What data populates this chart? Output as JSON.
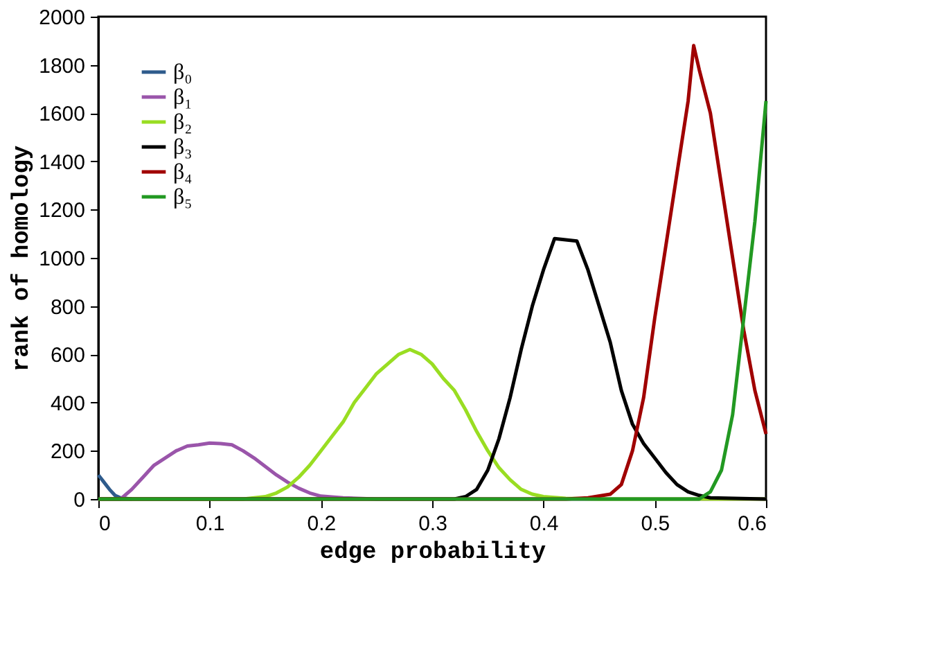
{
  "chart_data": {
    "type": "line",
    "xlabel": "edge probability",
    "ylabel": "rank of homology",
    "xlim": [
      0,
      0.6
    ],
    "ylim": [
      0,
      2000
    ],
    "xticks": [
      0,
      0.1,
      0.2,
      0.3,
      0.4,
      0.5,
      0.6
    ],
    "yticks": [
      0,
      200,
      400,
      600,
      800,
      1000,
      1200,
      1400,
      1600,
      1800,
      2000
    ],
    "grid": false,
    "legend": "top left",
    "line_style": "solid",
    "marker": "none",
    "series": [
      {
        "name": "β₀",
        "color": "#2e5b8c",
        "x": [
          0,
          0.005,
          0.01,
          0.015,
          0.02,
          0.03
        ],
        "values": [
          100,
          70,
          40,
          15,
          5,
          0
        ]
      },
      {
        "name": "β₁",
        "color": "#9a55aa",
        "x": [
          0,
          0.02,
          0.03,
          0.04,
          0.05,
          0.06,
          0.07,
          0.08,
          0.09,
          0.1,
          0.11,
          0.12,
          0.13,
          0.14,
          0.15,
          0.16,
          0.17,
          0.18,
          0.19,
          0.2,
          0.22,
          0.25,
          0.3,
          0.6
        ],
        "values": [
          0,
          0,
          40,
          90,
          140,
          170,
          200,
          220,
          225,
          232,
          230,
          225,
          200,
          170,
          135,
          100,
          70,
          45,
          25,
          12,
          5,
          0,
          0,
          0
        ]
      },
      {
        "name": "β₂",
        "color": "#99dd22",
        "x": [
          0,
          0.13,
          0.15,
          0.16,
          0.17,
          0.18,
          0.19,
          0.2,
          0.21,
          0.22,
          0.23,
          0.24,
          0.25,
          0.26,
          0.27,
          0.28,
          0.29,
          0.3,
          0.31,
          0.32,
          0.33,
          0.34,
          0.35,
          0.36,
          0.37,
          0.38,
          0.39,
          0.4,
          0.42,
          0.45,
          0.6
        ],
        "values": [
          0,
          0,
          10,
          25,
          50,
          90,
          140,
          200,
          260,
          320,
          400,
          460,
          520,
          560,
          600,
          620,
          600,
          560,
          500,
          450,
          370,
          280,
          200,
          130,
          80,
          40,
          20,
          10,
          3,
          0,
          0
        ]
      },
      {
        "name": "β₃",
        "color": "#000000",
        "x": [
          0,
          0.32,
          0.33,
          0.34,
          0.35,
          0.36,
          0.37,
          0.38,
          0.39,
          0.4,
          0.41,
          0.42,
          0.43,
          0.44,
          0.45,
          0.46,
          0.47,
          0.48,
          0.49,
          0.5,
          0.51,
          0.52,
          0.53,
          0.54,
          0.55,
          0.6
        ],
        "values": [
          0,
          0,
          10,
          40,
          120,
          250,
          420,
          620,
          800,
          950,
          1080,
          1075,
          1070,
          950,
          800,
          650,
          450,
          310,
          230,
          170,
          110,
          60,
          30,
          15,
          5,
          0
        ]
      },
      {
        "name": "β₄",
        "color": "#a00000",
        "x": [
          0,
          0.42,
          0.44,
          0.46,
          0.47,
          0.48,
          0.49,
          0.5,
          0.51,
          0.52,
          0.53,
          0.535,
          0.54,
          0.55,
          0.56,
          0.57,
          0.58,
          0.59,
          0.6
        ],
        "values": [
          0,
          0,
          5,
          20,
          60,
          200,
          420,
          750,
          1050,
          1350,
          1650,
          1880,
          1780,
          1600,
          1300,
          1000,
          700,
          450,
          270
        ]
      },
      {
        "name": "β₅",
        "color": "#229922",
        "x": [
          0,
          0.54,
          0.55,
          0.56,
          0.57,
          0.58,
          0.59,
          0.595,
          0.6
        ],
        "values": [
          0,
          0,
          30,
          120,
          350,
          750,
          1150,
          1400,
          1650
        ]
      }
    ]
  }
}
